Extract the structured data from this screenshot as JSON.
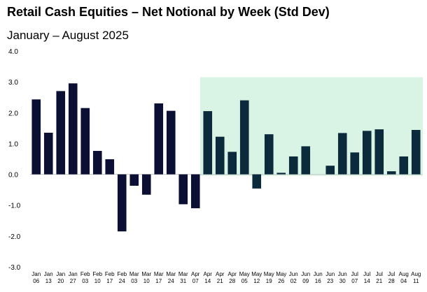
{
  "chart_data": {
    "type": "bar",
    "title": "Retail Cash Equities – Net Notional by Week (Std Dev)",
    "subtitle": "January – August 2025",
    "xlabel": "",
    "ylabel": "",
    "ylim": [
      -3.0,
      4.0
    ],
    "yticks": [
      "4.0",
      "3.0",
      "2.0",
      "1.0",
      "0.0",
      "-1.0",
      "-2.0",
      "-3.0"
    ],
    "ytick_values": [
      4,
      3,
      2,
      1,
      0,
      -1,
      -2,
      -3
    ],
    "categories": [
      [
        "Jan",
        "06"
      ],
      [
        "Jan",
        "13"
      ],
      [
        "Jan",
        "20"
      ],
      [
        "Jan",
        "27"
      ],
      [
        "Feb",
        "03"
      ],
      [
        "Feb",
        "10"
      ],
      [
        "Feb",
        "17"
      ],
      [
        "Feb",
        "24"
      ],
      [
        "Mar",
        "03"
      ],
      [
        "Mar",
        "10"
      ],
      [
        "Mar",
        "17"
      ],
      [
        "Mar",
        "24"
      ],
      [
        "Mar",
        "31"
      ],
      [
        "Apr",
        "07"
      ],
      [
        "Apr",
        "14"
      ],
      [
        "Apr",
        "21"
      ],
      [
        "Apr",
        "28"
      ],
      [
        "May",
        "05"
      ],
      [
        "May",
        "12"
      ],
      [
        "May",
        "19"
      ],
      [
        "May",
        "26"
      ],
      [
        "Jun",
        "02"
      ],
      [
        "Jun",
        "09"
      ],
      [
        "Jun",
        "16"
      ],
      [
        "Jun",
        "23"
      ],
      [
        "Jun",
        "30"
      ],
      [
        "Jul",
        "07"
      ],
      [
        "Jul",
        "14"
      ],
      [
        "Jul",
        "21"
      ],
      [
        "Jul",
        "28"
      ],
      [
        "Aug",
        "04"
      ],
      [
        "Aug",
        "11"
      ]
    ],
    "values": [
      2.43,
      1.35,
      2.7,
      2.95,
      2.15,
      0.76,
      0.49,
      -1.85,
      -0.37,
      -0.66,
      2.3,
      2.06,
      -0.97,
      -1.1,
      2.05,
      1.22,
      0.73,
      2.4,
      -0.46,
      1.3,
      0.05,
      0.58,
      0.91,
      0.0,
      0.28,
      1.34,
      0.71,
      1.41,
      1.46,
      0.1,
      0.58,
      1.44
    ],
    "highlight": {
      "start_index": 14,
      "end_index": 31,
      "y_top": 3.15,
      "y_bottom": -0.05
    },
    "colors": {
      "early_bar": "#0a0f33",
      "late_bar": "#0b2a3c",
      "highlight": "#d9f4e5",
      "zero_line": "#c8c8c8"
    },
    "grid": false,
    "legend": "none"
  }
}
